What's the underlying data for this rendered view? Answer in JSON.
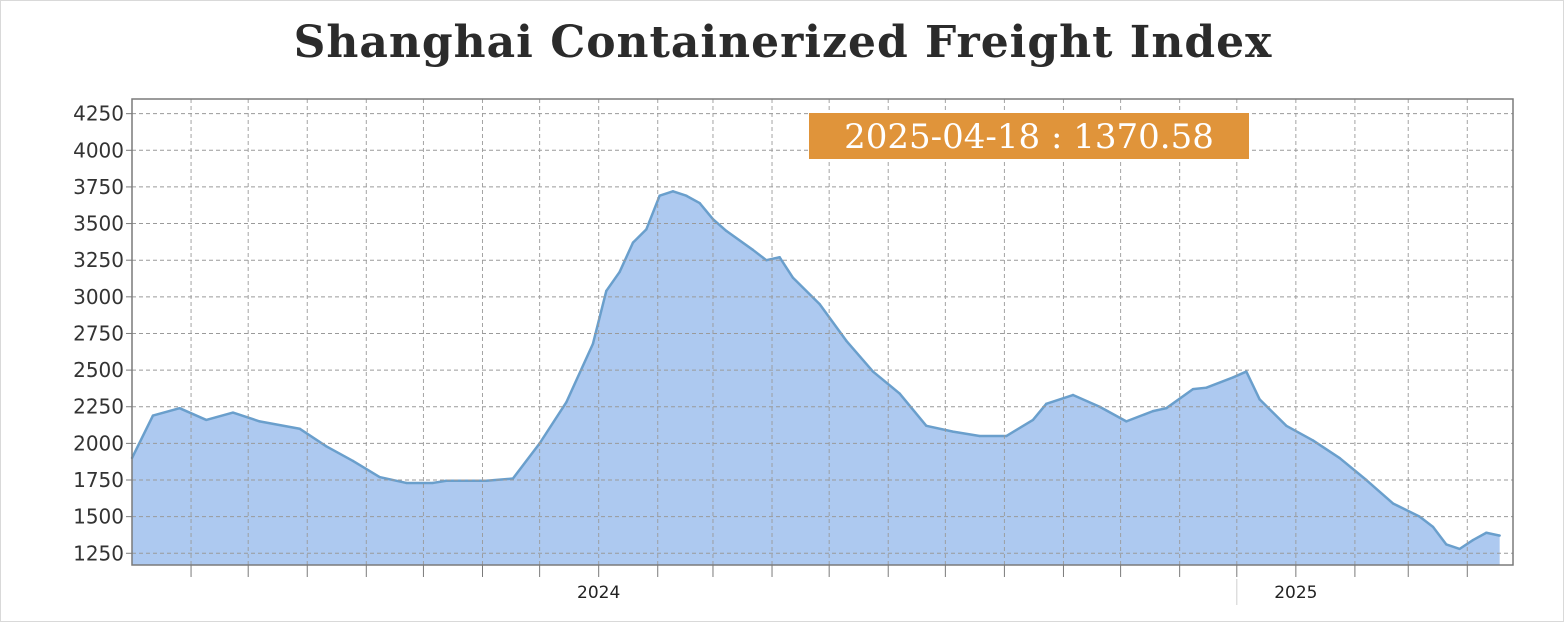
{
  "title": "Shanghai Containerized Freight Index",
  "callout": {
    "text": "2025-04-18 : 1370.58",
    "bg_color": "#e0943a",
    "text_color": "#ffffff"
  },
  "colors": {
    "area_fill": "#adc9f0",
    "line": "#6a9fcc",
    "grid": "#9a9a9a",
    "frame": "#7a7a7a"
  },
  "chart_data": {
    "type": "area",
    "title": "Shanghai Containerized Freight Index",
    "xlabel": "",
    "ylabel": "",
    "ylim": [
      1170,
      4350
    ],
    "yticks": [
      1250,
      1500,
      1750,
      2000,
      2250,
      2500,
      2750,
      3000,
      3250,
      3500,
      3750,
      4000,
      4250
    ],
    "x_tick_labels": [
      {
        "label": "2024",
        "date": "2024-01-01"
      },
      {
        "label": "2025",
        "date": "2025-01-01"
      }
    ],
    "xlim": [
      "2023-05-01",
      "2025-04-25"
    ],
    "grid": true,
    "series": [
      {
        "values": [
          [
            "2023-05-01",
            1900
          ],
          [
            "2023-05-12",
            2190
          ],
          [
            "2023-05-26",
            2240
          ],
          [
            "2023-06-09",
            2160
          ],
          [
            "2023-06-23",
            2210
          ],
          [
            "2023-07-07",
            2150
          ],
          [
            "2023-07-28",
            2100
          ],
          [
            "2023-08-11",
            1980
          ],
          [
            "2023-08-25",
            1880
          ],
          [
            "2023-09-08",
            1770
          ],
          [
            "2023-09-22",
            1730
          ],
          [
            "2023-10-06",
            1730
          ],
          [
            "2023-10-13",
            1745
          ],
          [
            "2023-11-03",
            1745
          ],
          [
            "2023-11-17",
            1760
          ],
          [
            "2023-12-01",
            2000
          ],
          [
            "2023-12-15",
            2280
          ],
          [
            "2023-12-29",
            2680
          ],
          [
            "2024-01-05",
            3040
          ],
          [
            "2024-01-12",
            3170
          ],
          [
            "2024-01-19",
            3370
          ],
          [
            "2024-01-26",
            3460
          ],
          [
            "2024-02-02",
            3690
          ],
          [
            "2024-02-09",
            3720
          ],
          [
            "2024-02-16",
            3690
          ],
          [
            "2024-02-23",
            3640
          ],
          [
            "2024-03-01",
            3530
          ],
          [
            "2024-03-08",
            3450
          ],
          [
            "2024-03-22",
            3320
          ],
          [
            "2024-03-29",
            3250
          ],
          [
            "2024-04-05",
            3270
          ],
          [
            "2024-04-12",
            3130
          ],
          [
            "2024-04-26",
            2950
          ],
          [
            "2024-05-10",
            2700
          ],
          [
            "2024-05-24",
            2490
          ],
          [
            "2024-06-07",
            2340
          ],
          [
            "2024-06-21",
            2120
          ],
          [
            "2024-07-05",
            2080
          ],
          [
            "2024-07-19",
            2050
          ],
          [
            "2024-08-02",
            2050
          ],
          [
            "2024-08-16",
            2160
          ],
          [
            "2024-08-23",
            2270
          ],
          [
            "2024-09-06",
            2330
          ],
          [
            "2024-09-20",
            2250
          ],
          [
            "2024-10-04",
            2150
          ],
          [
            "2024-10-18",
            2220
          ],
          [
            "2024-10-25",
            2240
          ],
          [
            "2024-11-08",
            2370
          ],
          [
            "2024-11-15",
            2380
          ],
          [
            "2024-11-29",
            2450
          ],
          [
            "2024-12-06",
            2490
          ],
          [
            "2024-12-13",
            2300
          ],
          [
            "2024-12-27",
            2120
          ],
          [
            "2025-01-10",
            2020
          ],
          [
            "2025-01-24",
            1900
          ],
          [
            "2025-02-07",
            1750
          ],
          [
            "2025-02-21",
            1590
          ],
          [
            "2025-03-07",
            1500
          ],
          [
            "2025-03-14",
            1430
          ],
          [
            "2025-03-21",
            1310
          ],
          [
            "2025-03-28",
            1280
          ],
          [
            "2025-04-04",
            1340
          ],
          [
            "2025-04-11",
            1390
          ],
          [
            "2025-04-18",
            1370.58
          ]
        ]
      }
    ]
  }
}
